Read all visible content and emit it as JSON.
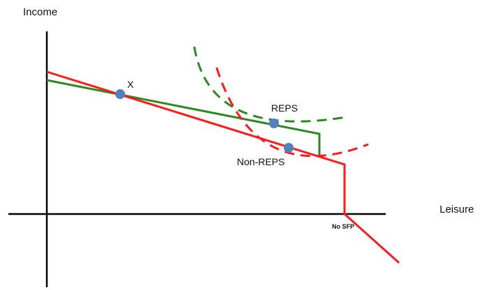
{
  "labels": {
    "y_axis": "Income",
    "x_axis": "Leisure",
    "point_x": "X",
    "point_reps": "REPS",
    "point_non_reps": "Non-REPS",
    "no_sfp": "No SFP"
  },
  "colors": {
    "axis": "#000000",
    "reps": "#2a8a1f",
    "non_reps": "#ff1a1a",
    "point": "#4f81bd",
    "text": "#111111"
  }
}
